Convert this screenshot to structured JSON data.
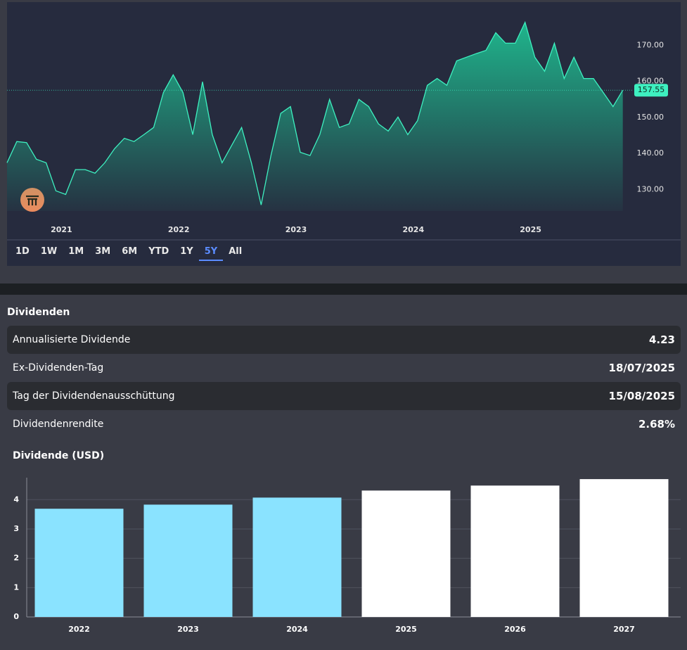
{
  "chart_data": [
    {
      "type": "area",
      "categories": [
        null,
        null,
        null,
        null,
        null,
        null,
        "2021",
        null,
        null,
        null,
        null,
        null,
        null,
        null,
        null,
        null,
        null,
        null,
        "2022",
        null,
        null,
        null,
        null,
        null,
        null,
        null,
        null,
        null,
        null,
        null,
        "2023",
        null,
        null,
        null,
        null,
        null,
        null,
        null,
        null,
        null,
        null,
        null,
        "2024",
        null,
        null,
        null,
        null,
        null,
        null,
        null,
        null,
        null,
        null,
        null,
        "2025",
        null,
        null,
        null,
        null,
        null,
        null,
        null,
        null,
        null
      ],
      "values": [
        137.4,
        143.3,
        143,
        138.4,
        137.4,
        129.6,
        128.6,
        135.5,
        135.5,
        134.5,
        137.4,
        141.3,
        144.2,
        143.3,
        145.2,
        147.2,
        156.9,
        161.8,
        156.9,
        145.2,
        159.9,
        145.2,
        137.4,
        142.3,
        147.2,
        137.4,
        125.7,
        139.4,
        151.1,
        153,
        140.3,
        139.4,
        145.2,
        155,
        147.2,
        148.2,
        155,
        153,
        148.2,
        146.2,
        150.1,
        145.2,
        149.1,
        158.9,
        160.8,
        158.9,
        165.7,
        166.7,
        167.7,
        168.6,
        173.5,
        170.6,
        170.6,
        176.4,
        166.7,
        162.8,
        170.6,
        160.8,
        166.7,
        160.8,
        160.8,
        156.9,
        153,
        157.55
      ],
      "color": "#3ef0c0",
      "ylim": [
        124,
        182
      ],
      "yticks": [
        {
          "value": 130,
          "label": "130.00"
        },
        {
          "value": 140,
          "label": "140.00"
        },
        {
          "value": 150,
          "label": "150.00"
        },
        {
          "value": 160,
          "label": "160.00"
        },
        {
          "value": 170,
          "label": "170.00"
        }
      ],
      "grid": false
    },
    {
      "type": "bar",
      "title": "Dividende (USD)",
      "categories": [
        "2022",
        "2023",
        "2024",
        "2025",
        "2026",
        "2027"
      ],
      "values": [
        3.69,
        3.83,
        4.07,
        4.31,
        4.48,
        4.7
      ],
      "colors": [
        "#8ae3ff",
        "#8ae3ff",
        "#8ae3ff",
        "#ffffff",
        "#ffffff",
        "#ffffff"
      ],
      "ylim": [
        0,
        4.75
      ],
      "yticks": [
        0,
        1,
        2,
        3,
        4
      ],
      "grid": true
    }
  ],
  "range_buttons": [
    "1D",
    "1W",
    "1M",
    "3M",
    "6M",
    "YTD",
    "1Y",
    "5Y",
    "All"
  ],
  "selected": "5Y",
  "dividends": {
    "title": "Dividenden",
    "rows": [
      [
        "Annualisierte Dividende",
        "4.23"
      ],
      [
        "Ex-Dividenden-Tag",
        "18/07/2025"
      ],
      [
        "Tag der Dividendenausschüttung",
        "15/08/2025"
      ],
      [
        "Dividendenrendite",
        "2.68%"
      ]
    ]
  }
}
